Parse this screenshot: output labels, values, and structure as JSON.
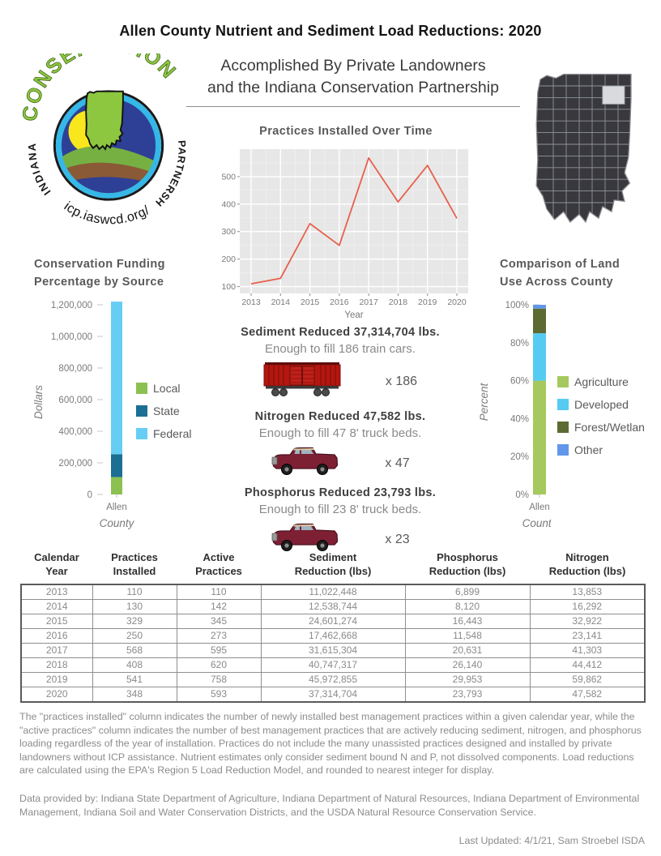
{
  "page": {
    "title": "Allen County Nutrient and Sediment Load Reductions: 2020",
    "subtitle": "Accomplished By Private Landowners\nand the Indiana Conservation Partnership"
  },
  "logo": {
    "arc_top_text": "CONSERVATION",
    "left_text": "INDIANA",
    "right_text": "PARTNERSHIP",
    "bottom_text": "icp.iaswcd.org/"
  },
  "map": {
    "highlighted_county": "Allen"
  },
  "chart_data": [
    {
      "type": "line",
      "title": "Practices Installed Over Time",
      "xlabel": "Year",
      "x": [
        2013,
        2014,
        2015,
        2016,
        2017,
        2018,
        2019,
        2020
      ],
      "values": [
        110,
        130,
        329,
        250,
        568,
        408,
        541,
        348
      ],
      "yticks": [
        100,
        200,
        300,
        400,
        500
      ],
      "ylim": [
        75,
        600
      ],
      "line_color": "#e8604c",
      "plot_bg": "#e7e7e7",
      "grid": true,
      "legend": "none"
    },
    {
      "type": "bar",
      "stacked": true,
      "title": "Conservation Funding\nPercentage by Source",
      "ylabel": "Dollars",
      "xlabel": "County",
      "categories": [
        "Allen"
      ],
      "series": [
        {
          "name": "Local",
          "value": 110000,
          "color": "#8cc152"
        },
        {
          "name": "State",
          "value": 145000,
          "color": "#1b6f94"
        },
        {
          "name": "Federal",
          "value": 965000,
          "color": "#66cef5"
        }
      ],
      "ytick_values": [
        0,
        200000,
        400000,
        600000,
        800000,
        1000000,
        1200000
      ],
      "ytick_labels": [
        "0",
        "200,000",
        "400,000",
        "600,000",
        "800,000",
        "1,000,000",
        "1,200,000"
      ],
      "ymax": 1200000,
      "legend_position": "right"
    },
    {
      "type": "bar",
      "stacked": true,
      "title": "Comparison of Land\nUse Across County",
      "ylabel": "Percent",
      "xlabel": "County",
      "categories": [
        "Allen"
      ],
      "series": [
        {
          "name": "Agriculture",
          "value": 60,
          "color": "#a5c95e"
        },
        {
          "name": "Developed",
          "value": 25,
          "color": "#55cbf2"
        },
        {
          "name": "Forest/Wetland",
          "value": 13,
          "color": "#5c6b32"
        },
        {
          "name": "Other",
          "value": 2,
          "color": "#6197ea"
        }
      ],
      "ytick_values": [
        0,
        20,
        40,
        60,
        80,
        100
      ],
      "ytick_labels": [
        "0%",
        "20%",
        "40%",
        "60%",
        "80%",
        "100%"
      ],
      "ymax": 100,
      "legend_position": "right"
    }
  ],
  "reductions": [
    {
      "heading": "Sediment Reduced 37,314,704 lbs.",
      "detail": "Enough to fill 186 train cars.",
      "multiplier": "x 186",
      "icon": "train-boxcar"
    },
    {
      "heading": "Nitrogen Reduced 47,582  lbs.",
      "detail": "Enough to fill 47 8' truck beds.",
      "multiplier": "x 47",
      "icon": "pickup-truck"
    },
    {
      "heading": "Phosphorus Reduced 23,793  lbs.",
      "detail": "Enough to fill 23  8' truck beds.",
      "multiplier": "x 23",
      "icon": "pickup-truck"
    }
  ],
  "table": {
    "headers": [
      "Calendar\nYear",
      "Practices\nInstalled",
      "Active\nPractices",
      "Sediment\nReduction (lbs)",
      "Phosphorus\nReduction (lbs)",
      "Nitrogen\nReduction (lbs)"
    ],
    "rows": [
      [
        "2013",
        "110",
        "110",
        "11,022,448",
        "6,899",
        "13,853"
      ],
      [
        "2014",
        "130",
        "142",
        "12,538,744",
        "8,120",
        "16,292"
      ],
      [
        "2015",
        "329",
        "345",
        "24,601,274",
        "16,443",
        "32,922"
      ],
      [
        "2016",
        "250",
        "273",
        "17,462,668",
        "11,548",
        "23,141"
      ],
      [
        "2017",
        "568",
        "595",
        "31,615,304",
        "20,631",
        "41,303"
      ],
      [
        "2018",
        "408",
        "620",
        "40,747,317",
        "26,140",
        "44,412"
      ],
      [
        "2019",
        "541",
        "758",
        "45,972,855",
        "29,953",
        "59,862"
      ],
      [
        "2020",
        "348",
        "593",
        "37,314,704",
        "23,793",
        "47,582"
      ]
    ]
  },
  "footer": {
    "paragraph1": "The \"practices installed\" column indicates the number of newly installed best management practices within a given calendar year, while the \"active practices\" column indicates the number of best management practices that are actively reducing sediment, nitrogen, and phosphorus loading regardless of the year of installation.  Practices do not include the many unassisted practices designed and installed by private landowners without ICP assistance. Nutrient estimates only consider sediment bound N and P, not dissolved components. Load reductions are calculated using the EPA's Region 5 Load Reduction Model, and rounded to nearest integer for display.",
    "paragraph2": "Data provided by: Indiana State Department of Agriculture, Indiana Department of Natural Resources, Indiana Department of Environmental Management, Indiana Soil and Water Conservation Districts, and the USDA Natural Resource Conservation Service.",
    "last_updated": "Last Updated: 4/1/21, Sam Stroebel ISDA"
  }
}
